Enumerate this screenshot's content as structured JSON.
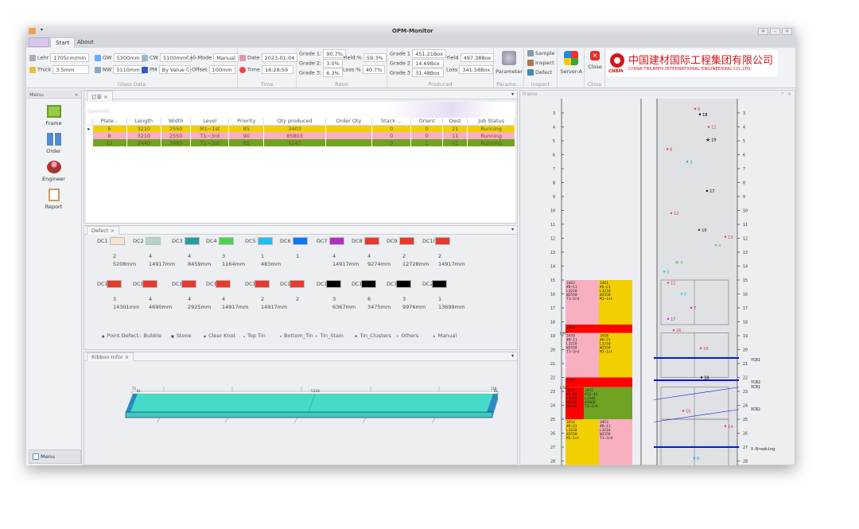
{
  "app": {
    "title": "OPM-Monitor",
    "window_buttons": [
      "restore",
      "minimize",
      "close"
    ]
  },
  "tabs": [
    {
      "label": "Start",
      "active": true
    },
    {
      "label": "About",
      "active": false
    }
  ],
  "ribbon": {
    "glass_data": {
      "label": "Glass Data",
      "lehr_label": "Lehr",
      "lehr": "1705cm/min",
      "thick_label": "Thick",
      "thick": "3.5mm",
      "gw_label": "GW",
      "gw": "5300mm",
      "nw_label": "NW",
      "nw": "5110mm",
      "cw_label": "CW",
      "cw": "5100mm",
      "pm_label": "PM",
      "pm": "By Value",
      "calimode_label": "Cali-Mode",
      "calimode": "Manual",
      "coffset_label": "C-Offset",
      "coffset": "100mm"
    },
    "time": {
      "label": "Time",
      "date_label": "Date",
      "date": "2023-01-04",
      "time_label": "Time",
      "time": "16:28:59"
    },
    "ratio": {
      "label": "Ratio",
      "g1_label": "Grade 1:",
      "g1": "90.7%",
      "g2_label": "Grade 2:",
      "g2": "3.0%",
      "g3_label": "Grade 3:",
      "g3": "6.3%",
      "yield_label": "Yield:%",
      "yield": "59.3%",
      "loss_label": "Loss:%",
      "loss": "40.7%"
    },
    "produced": {
      "label": "Produced",
      "g1_label": "Grade 1",
      "g1": "451.21Box",
      "g2_label": "Grade 2",
      "g2": "14.69Box",
      "g3_label": "Grade 3",
      "g3": "31.48Box",
      "yield_label": "Yield",
      "yield": "497.38Box",
      "loss_label": "Loss",
      "loss": "341.58Box"
    },
    "param": {
      "label": "Parame...",
      "button": "Parameter"
    },
    "inspect": {
      "label": "Inspect",
      "sample": "Sample",
      "inspect": "Inspect",
      "defect": "Defect"
    },
    "server": {
      "button": "Server-A"
    },
    "close": {
      "label": "Close",
      "button": "Close"
    },
    "logo": {
      "cn": "中国建材国际工程集团有限公司",
      "en": "CHINA TRIUMPH INTERNATIONAL ENGINEERING CO.,LTD.",
      "mark": "CNBM",
      "color": "#d7141a"
    }
  },
  "menu": {
    "title": "Menu",
    "items": [
      {
        "label": "Frame",
        "icon": "frame-icon"
      },
      {
        "label": "Order",
        "icon": "order-icon"
      },
      {
        "label": "Engineer",
        "icon": "engineer-icon"
      },
      {
        "label": "Report",
        "icon": "report-icon"
      }
    ],
    "bottom": "Menu"
  },
  "orders": {
    "tab": "订单",
    "caption": "OpenInfo",
    "columns": [
      "Plate...",
      "Length",
      "Width",
      "Level",
      "Priority",
      "Qty produced",
      "Order Qty",
      "Stack ...",
      "Orient",
      "Dest",
      "Job Status"
    ],
    "rows": [
      {
        "cells": [
          "6",
          "3210",
          "2550",
          "M1~1st",
          "85",
          "3403",
          "",
          "0",
          "0",
          "21",
          "Running"
        ],
        "color": "#f2cf00",
        "selected": true
      },
      {
        "cells": [
          "8",
          "3210",
          "2550",
          "T1~3rd",
          "90",
          "85803",
          "",
          "0",
          "0",
          "11",
          "Running"
        ],
        "color": "#f8b0c0",
        "selected": false
      },
      {
        "cells": [
          "12",
          "2440",
          "3660",
          "T1~3rd",
          "85",
          "1147",
          "",
          "0",
          "1",
          "41",
          "Running"
        ],
        "color": "#6fa321",
        "selected": false
      }
    ]
  },
  "defect": {
    "tab": "Defect",
    "codes": [
      {
        "name": "DC1",
        "color": "#f5e6d3",
        "count": "2",
        "len": "5208mm"
      },
      {
        "name": "DC2",
        "color": "#b5d3cc",
        "count": "4",
        "len": "14917mm"
      },
      {
        "name": "DC3",
        "color": "#2a9aa8",
        "count": "4",
        "len": "8459mm"
      },
      {
        "name": "DC4",
        "color": "#4fd04f",
        "count": "3",
        "len": "1164mm"
      },
      {
        "name": "DC5",
        "color": "#1ec0f0",
        "count": "1",
        "len": "483mm"
      },
      {
        "name": "DC6",
        "color": "#1177ee",
        "count": "1",
        "len": ""
      },
      {
        "name": "DC7",
        "color": "#b030c0",
        "count": "4",
        "len": "14917mm"
      },
      {
        "name": "DC8",
        "color": "#e8392f",
        "count": "4",
        "len": "9274mm"
      },
      {
        "name": "DC9",
        "color": "#e8392f",
        "count": "2",
        "len": "12728mm"
      },
      {
        "name": "DC10",
        "color": "#e8392f",
        "count": "2",
        "len": "14917mm"
      },
      {
        "name": "DC11",
        "color": "#e8392f",
        "count": "3",
        "len": "14301mm"
      },
      {
        "name": "DC12",
        "color": "#e8392f",
        "count": "4",
        "len": "4690mm"
      },
      {
        "name": "DC13",
        "color": "#e8392f",
        "count": "4",
        "len": "2925mm"
      },
      {
        "name": "DC14",
        "color": "#e8392f",
        "count": "4",
        "len": "14917mm"
      },
      {
        "name": "DC15",
        "color": "#e8392f",
        "count": "2",
        "len": "14917mm"
      },
      {
        "name": "DC16",
        "color": "#e8392f",
        "count": "2",
        "len": ""
      },
      {
        "name": "DC17",
        "color": "#000000",
        "count": "3",
        "len": "6367mm"
      },
      {
        "name": "DC18",
        "color": "#000000",
        "count": "6",
        "len": "3475mm"
      },
      {
        "name": "DC19",
        "color": "#000000",
        "count": "3",
        "len": "9976mm"
      },
      {
        "name": "DC20",
        "color": "#000000",
        "count": "1",
        "len": "13699mm"
      }
    ],
    "legend": [
      "Point Defect",
      "Bubble",
      "Stone",
      "Clear Knot",
      "Top Tin",
      "Bottom_Tin",
      "Tin_Stain",
      "Tin_Clusters",
      "Others",
      "Manual"
    ]
  },
  "ribbon_info": {
    "tab": "Ribbon Infor",
    "center_label": "5110",
    "left_label": "73",
    "left_label2": "81",
    "right_label": "110",
    "right_label2": "81",
    "color": "#45dbc8"
  },
  "frame": {
    "title": "Frame",
    "ruler": [
      3,
      4,
      5,
      6,
      7,
      8,
      9,
      10,
      11,
      12,
      13,
      14,
      15,
      16,
      17,
      18,
      19,
      20,
      21,
      22,
      23,
      24,
      25,
      26,
      27,
      28
    ],
    "plates": [
      {
        "from": 15,
        "to": 18.2,
        "left": {
          "text": [
            "3462",
            "#8~11",
            "L3210",
            "W2550",
            "T1~3rd"
          ],
          "color": "#f8b0c0"
        },
        "right": {
          "text": [
            "3461",
            "#6~21",
            "L3210",
            "W2550",
            "M1~1st"
          ],
          "color": "#f2cf00"
        }
      },
      {
        "from": 18.2,
        "to": 18.8,
        "full": {
          "text": [
            "3460"
          ],
          "color": "#ff0000"
        },
        "side": "L460"
      },
      {
        "from": 18.8,
        "to": 22,
        "left": {
          "text": [
            "3459",
            "#8~11",
            "L3210",
            "W2550",
            "T1~3rd"
          ],
          "color": "#f8b0c0"
        },
        "right": {
          "text": [
            "3458",
            "#6~21",
            "L3210",
            "W2550",
            "M1~1st"
          ],
          "color": "#f2cf00"
        }
      },
      {
        "from": 22,
        "to": 22.7,
        "full": {
          "text": [
            "3457"
          ],
          "color": "#ff0000"
        },
        "side": "L700"
      },
      {
        "from": 22.7,
        "to": 25,
        "left": {
          "text": [
            "3456",
            "#0~01",
            "L2440",
            "W2440",
            "R0000"
          ],
          "color": "#ff0000"
        },
        "right": {
          "text": [
            "3455",
            "#12~41",
            "L2440",
            "W3660",
            "T1~3rd"
          ],
          "color": "#6fa321"
        },
        "narrow": true
      },
      {
        "from": 25,
        "to": 28.3,
        "left": {
          "text": [
            "3454",
            "#6~21",
            "L3210",
            "W2550",
            "M1~1st"
          ],
          "color": "#f2cf00"
        },
        "right": {
          "text": [
            "3453",
            "#8~11",
            "L3210",
            "W2550",
            "T1~3rd"
          ],
          "color": "#f8b0c0"
        }
      }
    ],
    "markers": [
      {
        "label": "9",
        "row": 2.7,
        "color": "#e04040"
      },
      {
        "label": "18",
        "row": 3.1,
        "color": "#000000"
      },
      {
        "label": "12",
        "row": 4.0,
        "color": "#e04040"
      },
      {
        "label": "19",
        "row": 4.9,
        "color": "#000000",
        "star": true
      },
      {
        "label": "8",
        "row": 5.6,
        "color": "#e04040"
      },
      {
        "label": "3",
        "row": 6.5,
        "color": "#3399cc"
      },
      {
        "label": "17",
        "row": 8.6,
        "color": "#000000"
      },
      {
        "label": "12",
        "row": 10.2,
        "color": "#e04040"
      },
      {
        "label": "18",
        "row": 11.4,
        "color": "#333333"
      },
      {
        "label": "13",
        "row": 11.9,
        "color": "#e04040"
      },
      {
        "label": "4",
        "row": 12.5,
        "color": "#55bb55"
      },
      {
        "label": "4",
        "row": 13.7,
        "color": "#55bb55",
        "star": true
      },
      {
        "label": "5",
        "row": 14.4,
        "color": "#1ec0f0"
      },
      {
        "label": "12",
        "row": 15.2,
        "color": "#e04040"
      },
      {
        "label": "5",
        "row": 16.0,
        "color": "#1ec0f0"
      },
      {
        "label": "7",
        "row": 17.0,
        "color": "#b030c0"
      },
      {
        "label": "17",
        "row": 17.8,
        "color": "#b030c0"
      },
      {
        "label": "16",
        "row": 18.6,
        "color": "#e04040"
      },
      {
        "label": "10",
        "row": 19.9,
        "color": "#e04040"
      },
      {
        "label": "18",
        "row": 22.0,
        "color": "#000000"
      },
      {
        "label": "16",
        "row": 24.4,
        "color": "#e04040"
      },
      {
        "label": "14",
        "row": 25.5,
        "color": "#e04040"
      },
      {
        "label": "6",
        "row": 27.8,
        "color": "#3399cc"
      }
    ],
    "lines": [
      {
        "label": "YCB1",
        "row": 20.6
      },
      {
        "label": "YCB2",
        "row": 22.2
      },
      {
        "label": "X-Breaking",
        "row": 27.0
      }
    ],
    "slants": [
      {
        "label": "XCB1",
        "from": 23.6,
        "to": 22.7
      },
      {
        "label": "XCB2",
        "from": 25.2,
        "to": 24.3
      }
    ],
    "line_color": "#0018e0"
  }
}
